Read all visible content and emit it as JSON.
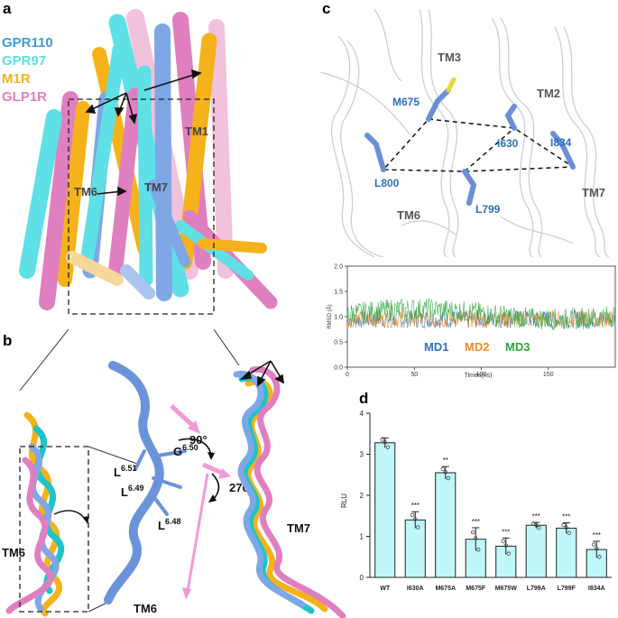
{
  "panels": {
    "a": {
      "letter": "a",
      "legend": [
        {
          "name": "GPR110",
          "color": "#3a9bdc"
        },
        {
          "name": "GPR97",
          "color": "#5ee0e6"
        },
        {
          "name": "M1R",
          "color": "#f5b21a"
        },
        {
          "name": "GLP1R",
          "color": "#e07fc0"
        }
      ],
      "labels": {
        "tm1": "TM1",
        "tm7": "TM7",
        "tm6": "TM6"
      }
    },
    "b": {
      "letter": "b",
      "labels": {
        "tm6_left": "TM6",
        "tm6_bottom": "TM6",
        "tm7": "TM7",
        "angle90": "90°",
        "angle270": "270°",
        "g650_main": "G",
        "g650_sup": "6.50",
        "l651_main": "L",
        "l651_sup": "6.51",
        "l649_main": "L",
        "l649_sup": "6.49",
        "l648_main": "L",
        "l648_sup": "6.48"
      }
    },
    "c": {
      "letter": "c",
      "labels": {
        "tm3": "TM3",
        "tm2": "TM2",
        "tm6": "TM6",
        "tm7": "TM7",
        "m675": "M675",
        "i630": "I630",
        "i834": "I834",
        "l800": "L800",
        "l799": "L799"
      },
      "rmsd": {
        "ylabel": "RMSD (Å)",
        "xlabel": "Times(ns)",
        "yticks": [
          "0.0",
          "0.5",
          "1.0",
          "1.5",
          "2.0"
        ],
        "xticks": [
          "0",
          "50",
          "100",
          "150"
        ],
        "series": [
          {
            "name": "MD1",
            "color": "#2f74b5"
          },
          {
            "name": "MD2",
            "color": "#f08a24"
          },
          {
            "name": "MD3",
            "color": "#2ea53b"
          }
        ]
      }
    },
    "d": {
      "letter": "d",
      "bar_color": "#bff7fb",
      "bar_edge": "#222222"
    }
  },
  "chart_data": {
    "type": "bar",
    "categories": [
      "WT",
      "I630A",
      "M675A",
      "M675F",
      "M675W",
      "L799A",
      "L799F",
      "I834A"
    ],
    "values": [
      3.28,
      1.4,
      2.55,
      0.93,
      0.76,
      1.27,
      1.2,
      0.68
    ],
    "errors": [
      0.12,
      0.2,
      0.15,
      0.28,
      0.2,
      0.07,
      0.13,
      0.2
    ],
    "significance": [
      "",
      "***",
      "**",
      "***",
      "***",
      "***",
      "***",
      "***"
    ],
    "ylabel": "RLU",
    "ylim": [
      0,
      4
    ],
    "yticks": [
      0,
      1,
      2,
      3,
      4
    ],
    "xlabel": ""
  }
}
